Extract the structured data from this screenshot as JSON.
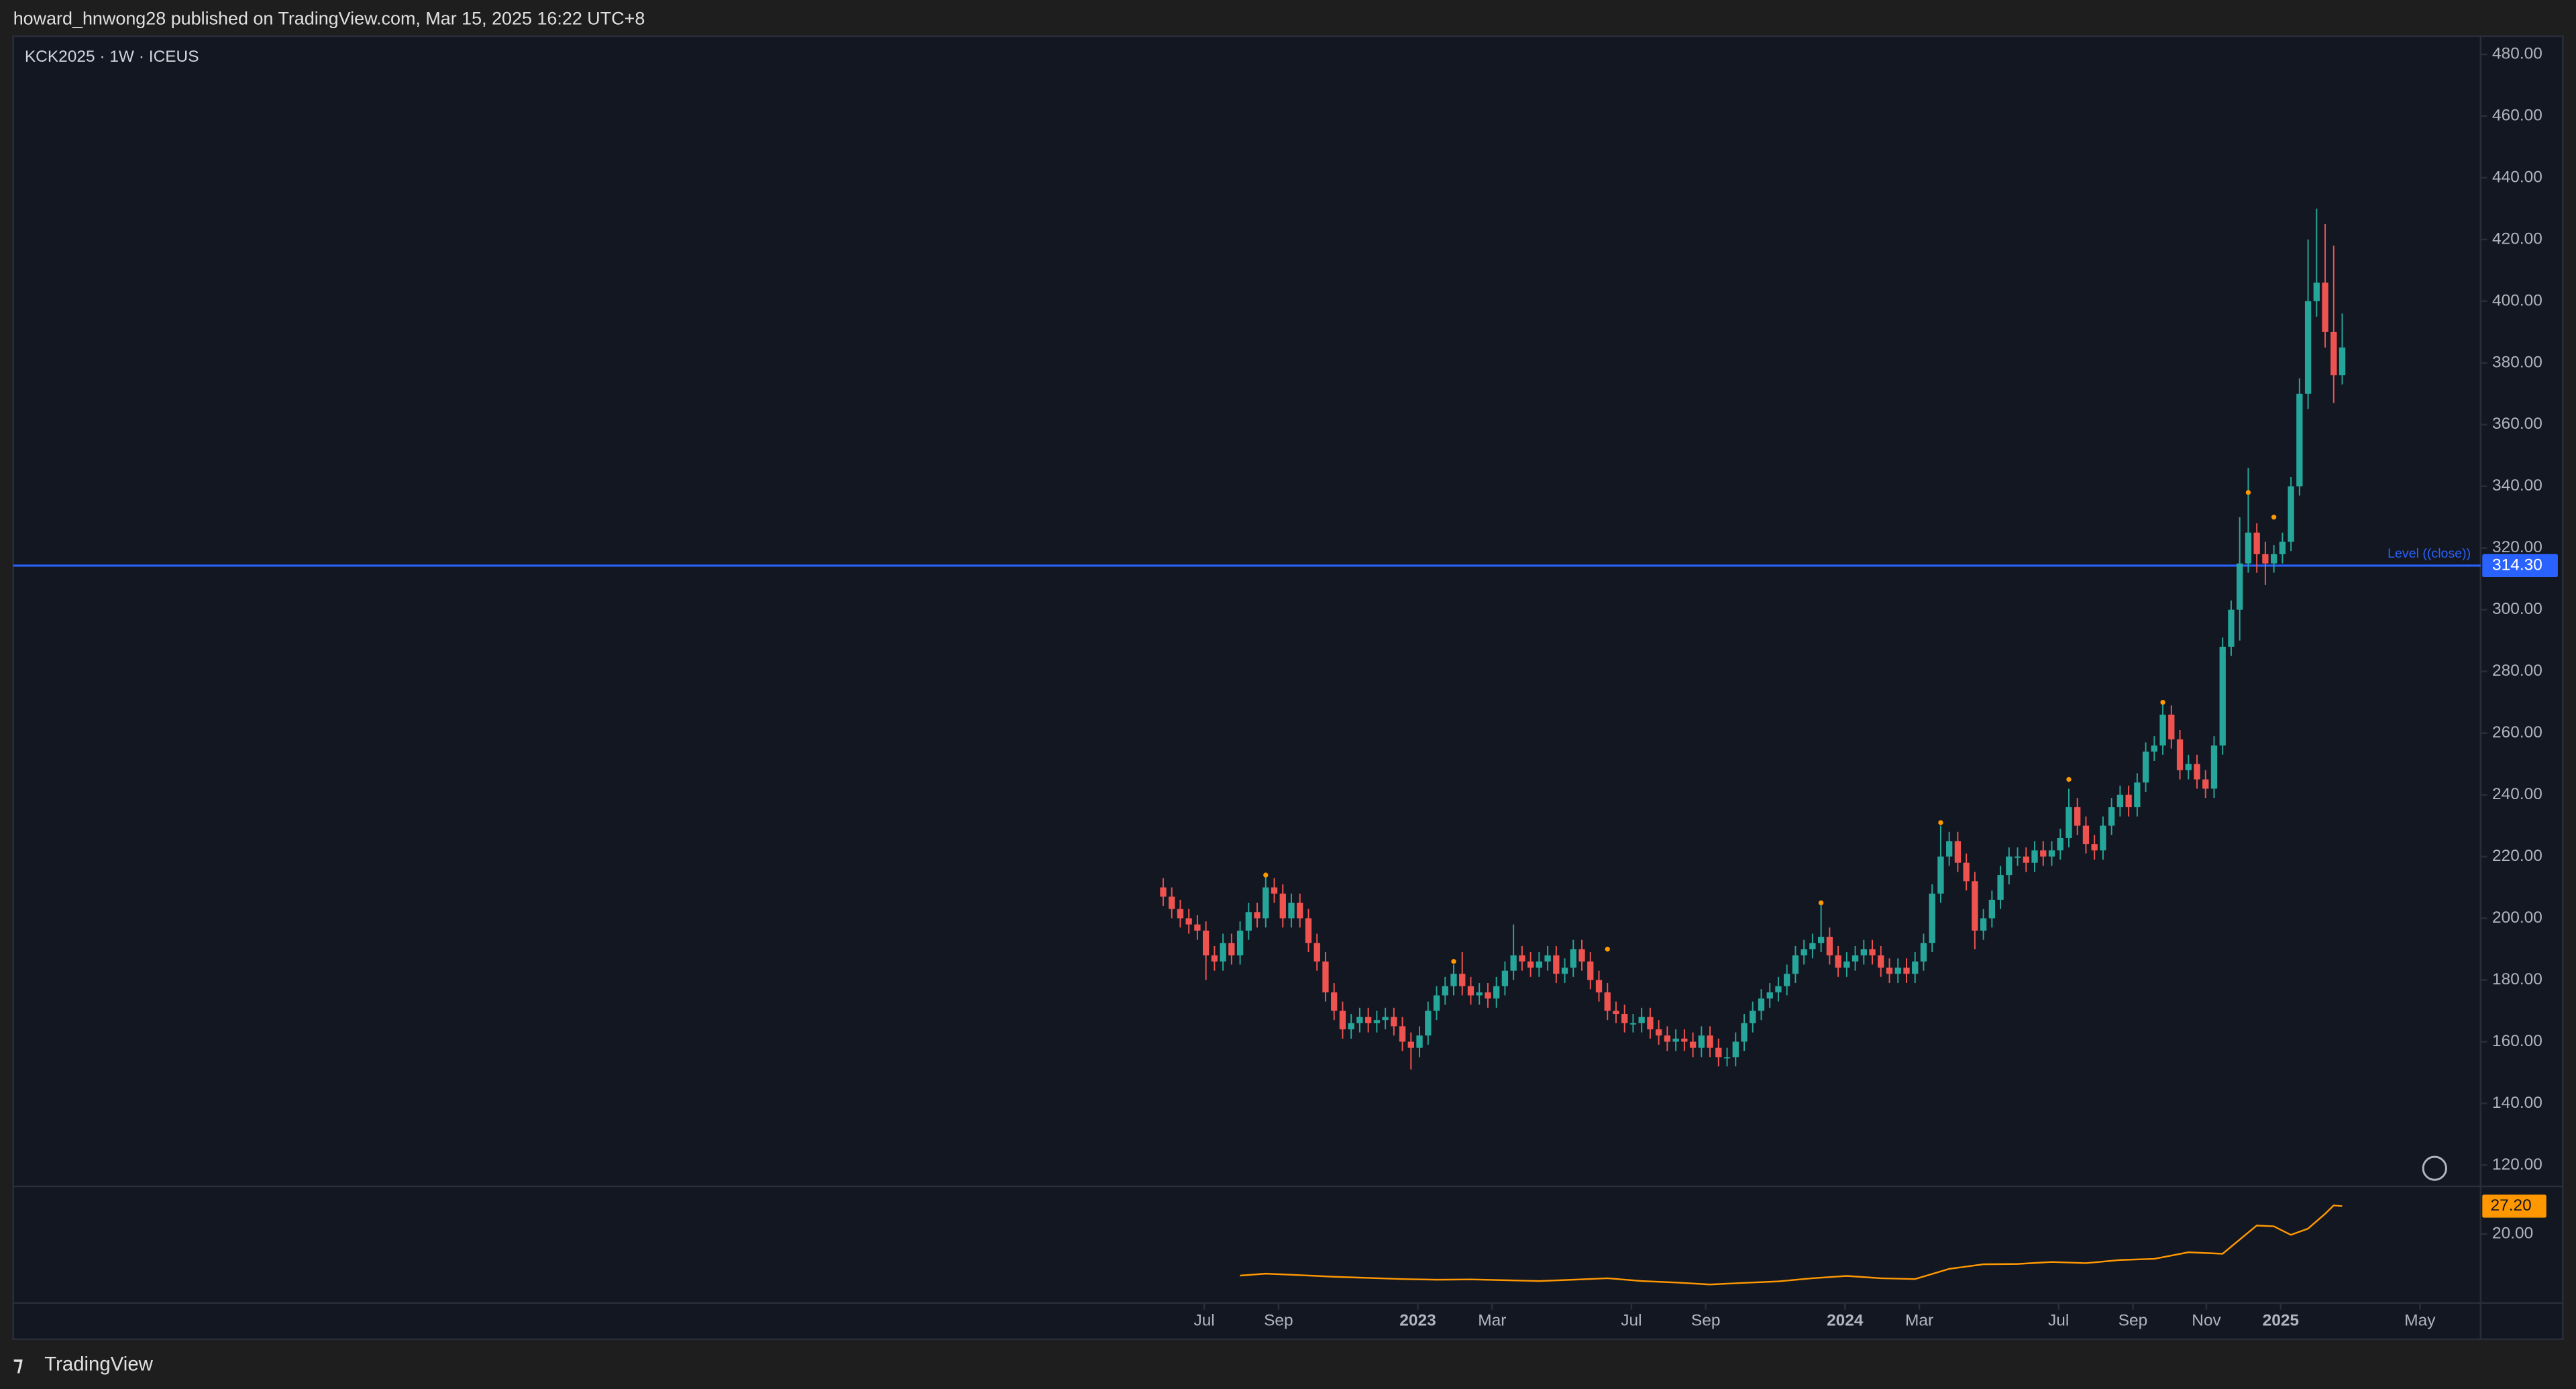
{
  "header": {
    "publisher": "howard_hnwong28 published on TradingView.com, Mar 15, 2025 16:22 UTC+8"
  },
  "footer": {
    "brand": "TradingView"
  },
  "chart_data": [
    {
      "type": "candlestick",
      "title": "KCK2025 · 1W · ICEUS",
      "up_color": "#26a69a",
      "down_color": "#ef5350",
      "x": [
        0,
        1,
        2,
        3,
        4,
        5,
        6,
        7,
        8,
        9,
        10,
        11,
        12,
        13,
        14,
        15,
        16,
        17,
        18,
        19,
        20,
        21,
        22,
        23,
        24,
        25,
        26,
        27,
        28,
        29,
        30,
        31,
        32,
        33,
        34,
        35,
        36,
        37,
        38,
        39,
        40,
        41,
        42,
        43,
        44,
        45,
        46,
        47,
        48,
        49,
        50,
        51,
        52,
        53,
        54,
        55,
        56,
        57,
        58,
        59,
        60,
        61,
        62,
        63,
        64,
        65,
        66,
        67,
        68,
        69,
        70,
        71,
        72,
        73,
        74,
        75,
        76,
        77,
        78,
        79,
        80,
        81,
        82,
        83,
        84,
        85,
        86,
        87,
        88,
        89,
        90,
        91,
        92,
        93,
        94,
        95,
        96,
        97,
        98,
        99,
        100,
        101,
        102,
        103,
        104,
        105,
        106,
        107,
        108,
        109,
        110,
        111,
        112,
        113,
        114,
        115,
        116,
        117,
        118,
        119,
        120,
        121,
        122,
        123,
        124,
        125,
        126,
        127,
        128,
        129,
        130,
        131,
        132,
        133,
        134,
        135,
        136,
        137,
        138
      ],
      "open": [
        210,
        207,
        203,
        200,
        198,
        196,
        188,
        186,
        192,
        188,
        196,
        202,
        200,
        210,
        208,
        200,
        205,
        200,
        192,
        186,
        176,
        170,
        164,
        166,
        168,
        166,
        167,
        168,
        165,
        160,
        158,
        162,
        170,
        175,
        178,
        182,
        178,
        175,
        176,
        174,
        178,
        183,
        188,
        186,
        184,
        186,
        188,
        182,
        184,
        190,
        186,
        180,
        176,
        170,
        169,
        166,
        166,
        168,
        164,
        162,
        160,
        161,
        160,
        158,
        162,
        158,
        155,
        155,
        160,
        166,
        170,
        174,
        176,
        178,
        182,
        188,
        190,
        192,
        194,
        188,
        184,
        186,
        188,
        190,
        188,
        184,
        182,
        184,
        182,
        186,
        192,
        208,
        220,
        225,
        218,
        212,
        196,
        200,
        206,
        214,
        220,
        220,
        218,
        222,
        220,
        222,
        226,
        236,
        230,
        224,
        222,
        230,
        236,
        240,
        236,
        244,
        254,
        256,
        266,
        258,
        248,
        250,
        245,
        242,
        256,
        288,
        300,
        315,
        325,
        318,
        315,
        318,
        322,
        340,
        370,
        400,
        406,
        390,
        376
      ],
      "high": [
        213,
        210,
        206,
        203,
        201,
        199,
        191,
        195,
        195,
        199,
        205,
        205,
        214,
        213,
        211,
        208,
        208,
        203,
        195,
        189,
        179,
        173,
        169,
        171,
        171,
        170,
        171,
        171,
        168,
        163,
        165,
        173,
        178,
        181,
        185,
        189,
        181,
        179,
        179,
        181,
        186,
        198,
        191,
        189,
        189,
        191,
        191,
        187,
        193,
        193,
        189,
        183,
        179,
        173,
        172,
        169,
        171,
        171,
        167,
        165,
        164,
        164,
        163,
        165,
        165,
        161,
        158,
        163,
        169,
        173,
        177,
        179,
        181,
        185,
        191,
        193,
        195,
        205,
        197,
        191,
        189,
        191,
        193,
        193,
        191,
        187,
        187,
        187,
        189,
        195,
        211,
        230,
        228,
        228,
        221,
        215,
        203,
        209,
        217,
        223,
        223,
        223,
        225,
        225,
        225,
        229,
        242,
        239,
        233,
        227,
        233,
        239,
        243,
        243,
        247,
        257,
        259,
        270,
        269,
        261,
        253,
        253,
        248,
        259,
        291,
        303,
        330,
        346,
        328,
        322,
        321,
        325,
        343,
        375,
        420,
        430,
        425,
        418,
        396
      ],
      "low": [
        204,
        200,
        197,
        195,
        193,
        180,
        183,
        183,
        185,
        185,
        193,
        197,
        197,
        205,
        197,
        197,
        197,
        189,
        183,
        173,
        167,
        161,
        161,
        163,
        163,
        163,
        164,
        162,
        157,
        151,
        155,
        159,
        167,
        172,
        175,
        175,
        172,
        172,
        171,
        171,
        175,
        180,
        183,
        181,
        181,
        183,
        179,
        179,
        181,
        183,
        177,
        173,
        167,
        166,
        163,
        163,
        163,
        161,
        159,
        157,
        157,
        157,
        155,
        155,
        155,
        152,
        152,
        152,
        157,
        163,
        167,
        171,
        173,
        175,
        179,
        185,
        187,
        189,
        185,
        181,
        181,
        183,
        185,
        185,
        181,
        179,
        179,
        179,
        179,
        183,
        189,
        205,
        217,
        215,
        209,
        190,
        193,
        197,
        203,
        211,
        217,
        215,
        215,
        217,
        217,
        219,
        223,
        227,
        221,
        219,
        219,
        227,
        233,
        233,
        233,
        241,
        251,
        253,
        255,
        245,
        245,
        242,
        239,
        239,
        253,
        285,
        290,
        312,
        312,
        308,
        312,
        315,
        319,
        337,
        365,
        395,
        385,
        367,
        373
      ],
      "close": [
        207,
        203,
        200,
        198,
        196,
        188,
        186,
        192,
        188,
        196,
        202,
        200,
        210,
        208,
        200,
        205,
        200,
        192,
        186,
        176,
        170,
        164,
        166,
        168,
        166,
        167,
        168,
        165,
        160,
        158,
        162,
        170,
        175,
        178,
        182,
        178,
        175,
        176,
        174,
        178,
        183,
        188,
        186,
        184,
        186,
        188,
        182,
        184,
        190,
        186,
        180,
        176,
        170,
        169,
        166,
        166,
        168,
        164,
        162,
        160,
        161,
        160,
        158,
        162,
        158,
        155,
        155,
        160,
        166,
        170,
        174,
        176,
        178,
        182,
        188,
        190,
        192,
        194,
        188,
        184,
        186,
        188,
        190,
        188,
        184,
        182,
        184,
        182,
        186,
        192,
        208,
        220,
        225,
        218,
        212,
        196,
        200,
        206,
        214,
        220,
        220,
        218,
        222,
        220,
        222,
        226,
        236,
        230,
        224,
        222,
        230,
        236,
        240,
        236,
        244,
        254,
        256,
        266,
        258,
        248,
        250,
        245,
        242,
        256,
        288,
        300,
        315,
        325,
        318,
        315,
        318,
        322,
        340,
        370,
        400,
        406,
        390,
        376,
        385
      ],
      "markers": {
        "color": "#ff9800",
        "x": [
          12,
          34,
          52,
          77,
          91,
          106,
          117,
          127,
          130
        ],
        "values": [
          214,
          186,
          190,
          205,
          231,
          245,
          270,
          338,
          330
        ]
      },
      "level": {
        "name": "Level ((close))",
        "value": 314.3,
        "label": "314.30",
        "color": "#2962ff"
      },
      "xlim": [
        -134.6,
        154.2
      ],
      "xticks": [
        {
          "value": 4.8,
          "label": "Jul"
        },
        {
          "value": 13.5,
          "label": "Sep"
        },
        {
          "value": 29.8,
          "label": "2023"
        },
        {
          "value": 38.5,
          "label": "Mar"
        },
        {
          "value": 54.8,
          "label": "Jul"
        },
        {
          "value": 63.5,
          "label": "Sep"
        },
        {
          "value": 79.8,
          "label": "2024"
        },
        {
          "value": 88.5,
          "label": "Mar"
        },
        {
          "value": 104.8,
          "label": "Jul"
        },
        {
          "value": 113.5,
          "label": "Sep"
        },
        {
          "value": 122.1,
          "label": "Nov"
        },
        {
          "value": 130.8,
          "label": "2025"
        },
        {
          "value": 147.1,
          "label": "May"
        }
      ],
      "ylim": [
        113.1,
        485.9
      ],
      "yticks": [
        {
          "value": 120,
          "label": "120.00"
        },
        {
          "value": 140,
          "label": "140.00"
        },
        {
          "value": 160,
          "label": "160.00"
        },
        {
          "value": 180,
          "label": "180.00"
        },
        {
          "value": 200,
          "label": "200.00"
        },
        {
          "value": 220,
          "label": "220.00"
        },
        {
          "value": 240,
          "label": "240.00"
        },
        {
          "value": 260,
          "label": "260.00"
        },
        {
          "value": 280,
          "label": "280.00"
        },
        {
          "value": 300,
          "label": "300.00"
        },
        {
          "value": 320,
          "label": "320.00"
        },
        {
          "value": 340,
          "label": "340.00"
        },
        {
          "value": 360,
          "label": "360.00"
        },
        {
          "value": 380,
          "label": "380.00"
        },
        {
          "value": 400,
          "label": "400.00"
        },
        {
          "value": 420,
          "label": "420.00"
        },
        {
          "value": 440,
          "label": "440.00"
        },
        {
          "value": 460,
          "label": "460.00"
        },
        {
          "value": 480,
          "label": "480.00"
        }
      ]
    },
    {
      "type": "line",
      "color": "#ff9800",
      "x": [
        9,
        12,
        16,
        20,
        24,
        28,
        32,
        36,
        40,
        44,
        48,
        52,
        56,
        60,
        64,
        68,
        72,
        76,
        80,
        84,
        88,
        92,
        96,
        100,
        104,
        108,
        112,
        116,
        120,
        124,
        128,
        130,
        132,
        134,
        136,
        137,
        138
      ],
      "values": [
        9.3,
        9.8,
        9.4,
        9.0,
        8.7,
        8.4,
        8.2,
        8.3,
        8.1,
        7.9,
        8.2,
        8.6,
        7.9,
        7.5,
        7.0,
        7.4,
        7.8,
        8.6,
        9.2,
        8.6,
        8.4,
        11.0,
        12.2,
        12.3,
        12.8,
        12.5,
        13.3,
        13.6,
        15.3,
        14.9,
        22.2,
        22.0,
        19.8,
        21.4,
        25.2,
        27.4,
        27.2
      ],
      "last_value": {
        "value": 27.2,
        "label": "27.20"
      },
      "xlim": [
        -134.6,
        154.2
      ],
      "ylim": [
        2.2,
        32.3
      ],
      "yticks": [
        {
          "value": 20,
          "label": "20.00"
        }
      ]
    }
  ]
}
